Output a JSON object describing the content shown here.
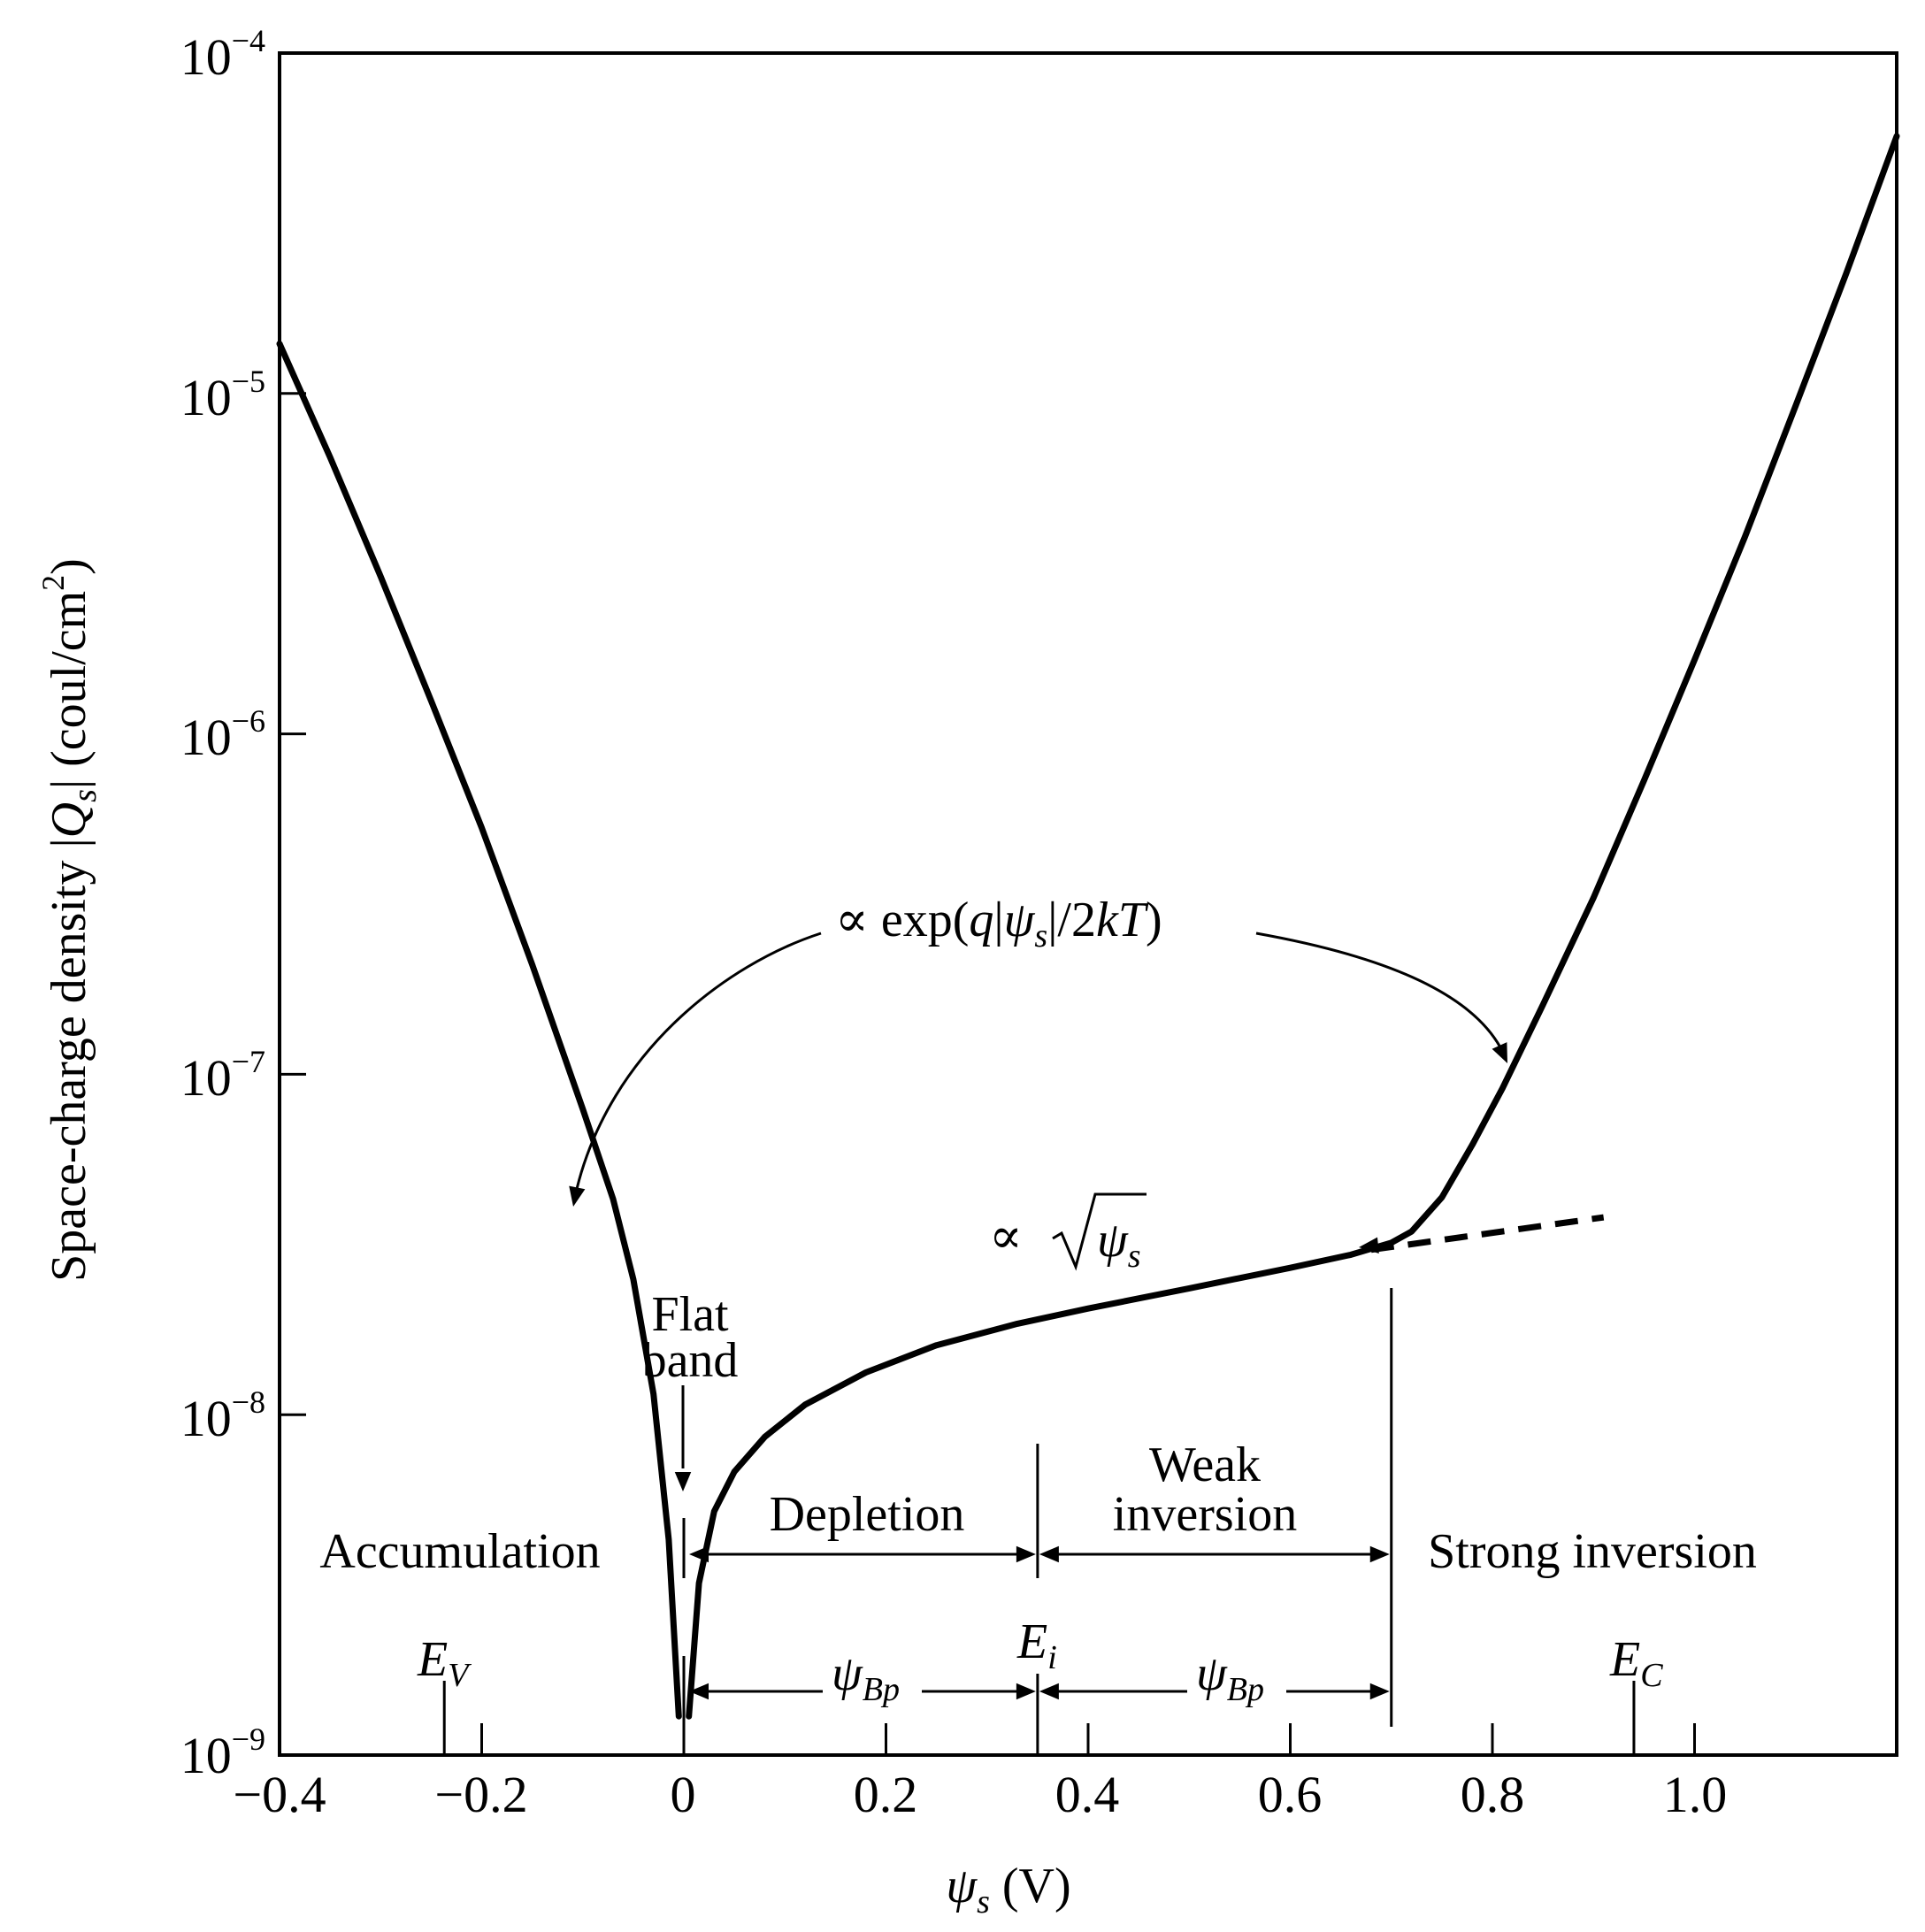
{
  "chart_data": {
    "type": "line",
    "xlabel": "ψs (V)",
    "ylabel": "Space-charge density |Qs| (coul/cm²)",
    "x_ticks": [
      "−0.4",
      "−0.2",
      "0",
      "0.2",
      "0.4",
      "0.6",
      "0.8",
      "1.0"
    ],
    "y_ticks": [
      {
        "base": "10",
        "exp": "−4"
      },
      {
        "base": "10",
        "exp": "−5"
      },
      {
        "base": "10",
        "exp": "−6"
      },
      {
        "base": "10",
        "exp": "−7"
      },
      {
        "base": "10",
        "exp": "−8"
      },
      {
        "base": "10",
        "exp": "−9"
      }
    ],
    "xlim": [
      -0.4,
      1.2
    ],
    "ylim": [
      1e-09,
      0.0001
    ],
    "y_scale": "log",
    "grid": false,
    "series": [
      {
        "x": [
          -0.4,
          -0.35,
          -0.3,
          -0.25,
          -0.2,
          -0.15,
          -0.1,
          -0.07,
          -0.05,
          -0.03,
          -0.015,
          -0.005
        ],
        "y": [
          1.4e-05,
          6.5e-06,
          2.9e-06,
          1.25e-06,
          5.3e-07,
          2.1e-07,
          7.9e-08,
          4.3e-08,
          2.5e-08,
          1.15e-08,
          4.3e-09,
          1.3e-09
        ]
      },
      {
        "x": [
          0.005,
          0.015,
          0.03,
          0.05,
          0.08,
          0.12,
          0.18,
          0.25,
          0.33,
          0.4,
          0.5,
          0.6,
          0.66,
          0.7,
          0.72,
          0.75,
          0.78,
          0.81,
          0.85,
          0.9,
          0.95,
          1.0,
          1.05,
          1.1,
          1.15,
          1.2
        ],
        "y": [
          1.3e-09,
          3.2e-09,
          5.2e-09,
          6.8e-09,
          8.6e-09,
          1.07e-08,
          1.33e-08,
          1.6e-08,
          1.85e-08,
          2.05e-08,
          2.35e-08,
          2.7e-08,
          2.95e-08,
          3.2e-08,
          3.45e-08,
          4.35e-08,
          6.2e-08,
          9.1e-08,
          1.6e-07,
          3.3e-07,
          7.3e-07,
          1.65e-06,
          3.8e-06,
          9.2e-06,
          2.25e-05,
          5.7e-05
        ]
      },
      {
        "style": "dashed",
        "x": [
          0.68,
          0.91
        ],
        "y": [
          3.05e-08,
          3.8e-08
        ]
      }
    ],
    "annotations": {
      "exp_prefix": "∝ exp(",
      "exp_q": "q",
      "exp_bar1": "|",
      "exp_psi": "ψ",
      "exp_psi_sub": "s",
      "exp_bar2": "|/2",
      "exp_kT": "kT",
      "exp_close": ")",
      "sqrt_prefix": "∝",
      "sqrt_psi": "ψ",
      "sqrt_sub": "s",
      "flat_band_1": "Flat",
      "flat_band_2": "band"
    },
    "regions": [
      "Accumulation",
      "Depletion",
      "Weak",
      "inversion",
      "Strong inversion"
    ],
    "energy_marks": {
      "ev": "E",
      "ev_sub": "V",
      "ei": "E",
      "ei_sub": "i",
      "ec": "E",
      "ec_sub": "C"
    },
    "psi_bp": {
      "psi": "ψ",
      "sub": "Bp"
    },
    "psi_bp_width": 0.35,
    "xlabel_parts": {
      "psi": "ψ",
      "sub": "s",
      "unit": " (V)"
    },
    "ylabel_parts": {
      "pre": "Space-charge density |",
      "q": "Q",
      "q_sub": "s",
      "mid": "| (coul/cm",
      "sup": "2",
      "post": ")"
    }
  }
}
